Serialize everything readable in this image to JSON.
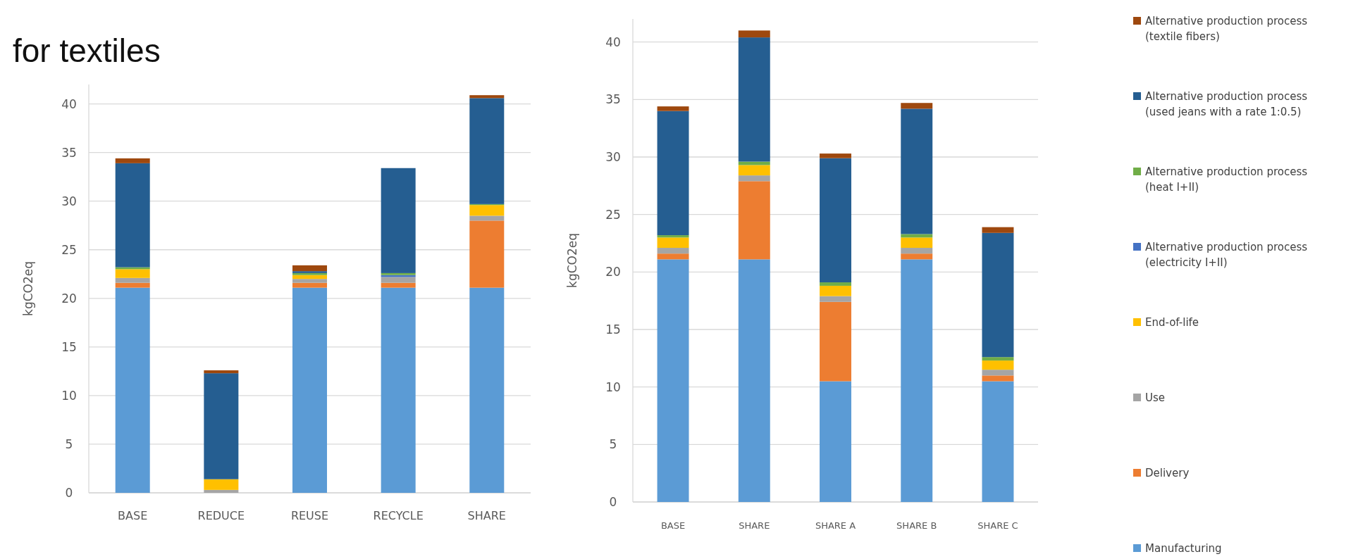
{
  "chart_data": [
    {
      "type": "bar",
      "title": "for textiles",
      "stacked": true,
      "ylabel": "kgCO2eq",
      "categories": [
        "BASE",
        "REDUCE",
        "REUSE",
        "RECYCLE",
        "SHARE"
      ],
      "ylim": [
        0,
        42
      ],
      "yticks": [
        0,
        5,
        10,
        15,
        20,
        25,
        30,
        35,
        40
      ],
      "grid": "y",
      "legend": false,
      "series": [
        {
          "color": "#5b9bd5",
          "values": [
            21.1,
            0,
            21.1,
            21.1,
            21.1
          ]
        },
        {
          "color": "#ed7d31",
          "values": [
            0.5,
            0,
            0.5,
            0.5,
            6.9
          ]
        },
        {
          "color": "#a5a5a5",
          "values": [
            0.5,
            0.3,
            0.4,
            0.6,
            0.5
          ]
        },
        {
          "color": "#ffc000",
          "values": [
            0.9,
            1.1,
            0.4,
            0,
            1.1
          ]
        },
        {
          "color": "#4472c4",
          "values": [
            0,
            0,
            0,
            0.2,
            0
          ]
        },
        {
          "color": "#70ad47",
          "values": [
            0.2,
            0,
            0.2,
            0.2,
            0.1
          ]
        },
        {
          "color": "#255e91",
          "values": [
            10.7,
            10.9,
            0.2,
            10.8,
            10.9
          ]
        },
        {
          "color": "#9e480e",
          "values": [
            0.5,
            0.3,
            0.6,
            0,
            0.3
          ]
        }
      ]
    },
    {
      "type": "bar",
      "stacked": true,
      "ylabel": "kgCO2eq",
      "categories": [
        "BASE",
        "SHARE",
        "SHARE A",
        "SHARE B",
        "SHARE C"
      ],
      "ylim": [
        0,
        42
      ],
      "yticks": [
        0,
        5,
        10,
        15,
        20,
        25,
        30,
        35,
        40
      ],
      "grid": "y",
      "legend": "right",
      "series": [
        {
          "name": "Manufacturing",
          "color": "#5b9bd5",
          "values": [
            21.1,
            21.1,
            10.5,
            21.1,
            10.5
          ]
        },
        {
          "name": "Delivery",
          "color": "#ed7d31",
          "values": [
            0.5,
            6.8,
            6.9,
            0.5,
            0.5
          ]
        },
        {
          "name": "Use",
          "color": "#a5a5a5",
          "values": [
            0.5,
            0.5,
            0.5,
            0.5,
            0.5
          ]
        },
        {
          "name": "End-of-life",
          "color": "#ffc000",
          "values": [
            0.9,
            0.9,
            0.9,
            0.9,
            0.8
          ]
        },
        {
          "name": "Alternative production process (electricity I+II)",
          "color": "#4472c4",
          "values": [
            0,
            0,
            0,
            0,
            0
          ]
        },
        {
          "name": "Alternative production process (heat I+II)",
          "color": "#70ad47",
          "values": [
            0.2,
            0.3,
            0.3,
            0.3,
            0.3
          ]
        },
        {
          "name": "Alternative production process (used jeans with a rate 1:0.5)",
          "color": "#255e91",
          "values": [
            10.8,
            10.8,
            10.8,
            10.9,
            10.8
          ]
        },
        {
          "name": "Alternative production process (textile fibers)",
          "color": "#9e480e",
          "values": [
            0.4,
            0.6,
            0.4,
            0.5,
            0.5
          ]
        }
      ]
    }
  ]
}
